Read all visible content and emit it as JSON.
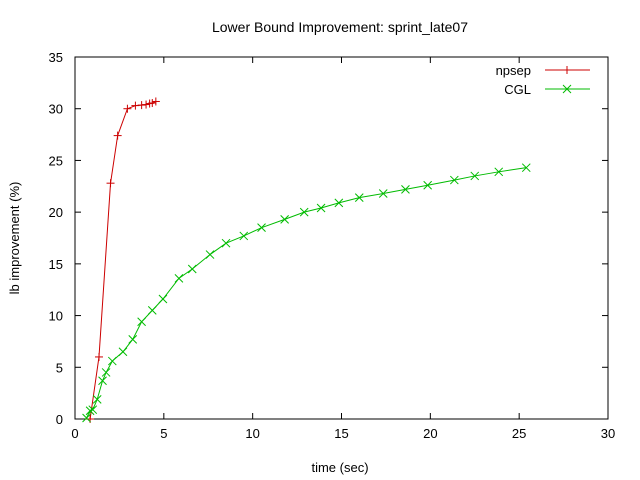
{
  "chart_data": {
    "type": "line",
    "title": "Lower Bound Improvement: sprint_late07",
    "xlabel": "time (sec)",
    "ylabel": "lb improvement (%)",
    "xlim": [
      0,
      30
    ],
    "ylim": [
      0,
      35
    ],
    "x_ticks": [
      0,
      5,
      10,
      15,
      20,
      25,
      30
    ],
    "y_ticks": [
      0,
      5,
      10,
      15,
      20,
      25,
      30,
      35
    ],
    "grid": false,
    "legend_position": "top-right",
    "series": [
      {
        "name": "npsep",
        "color": "#cc0000",
        "marker": "plus",
        "points": [
          [
            0.85,
            0.0
          ],
          [
            1.35,
            6.0
          ],
          [
            2.0,
            22.8
          ],
          [
            2.4,
            27.4
          ],
          [
            2.95,
            30.0
          ],
          [
            3.4,
            30.3
          ],
          [
            3.75,
            30.35
          ],
          [
            4.0,
            30.4
          ],
          [
            4.2,
            30.5
          ],
          [
            4.35,
            30.55
          ],
          [
            4.55,
            30.7
          ]
        ]
      },
      {
        "name": "CGL",
        "color": "#00bb00",
        "marker": "cross",
        "points": [
          [
            0.65,
            0.1
          ],
          [
            0.85,
            0.8
          ],
          [
            1.0,
            0.9
          ],
          [
            1.25,
            1.9
          ],
          [
            1.55,
            3.7
          ],
          [
            1.75,
            4.5
          ],
          [
            2.1,
            5.6
          ],
          [
            2.7,
            6.5
          ],
          [
            3.25,
            7.7
          ],
          [
            3.75,
            9.4
          ],
          [
            4.35,
            10.5
          ],
          [
            4.95,
            11.6
          ],
          [
            5.85,
            13.6
          ],
          [
            6.6,
            14.5
          ],
          [
            7.6,
            15.9
          ],
          [
            8.5,
            17.0
          ],
          [
            9.5,
            17.7
          ],
          [
            10.5,
            18.5
          ],
          [
            11.8,
            19.3
          ],
          [
            12.9,
            20.0
          ],
          [
            13.85,
            20.4
          ],
          [
            14.85,
            20.9
          ],
          [
            16.0,
            21.4
          ],
          [
            17.35,
            21.8
          ],
          [
            18.6,
            22.2
          ],
          [
            19.85,
            22.6
          ],
          [
            21.35,
            23.1
          ],
          [
            22.5,
            23.5
          ],
          [
            23.85,
            23.9
          ],
          [
            25.4,
            24.3
          ]
        ]
      }
    ]
  }
}
